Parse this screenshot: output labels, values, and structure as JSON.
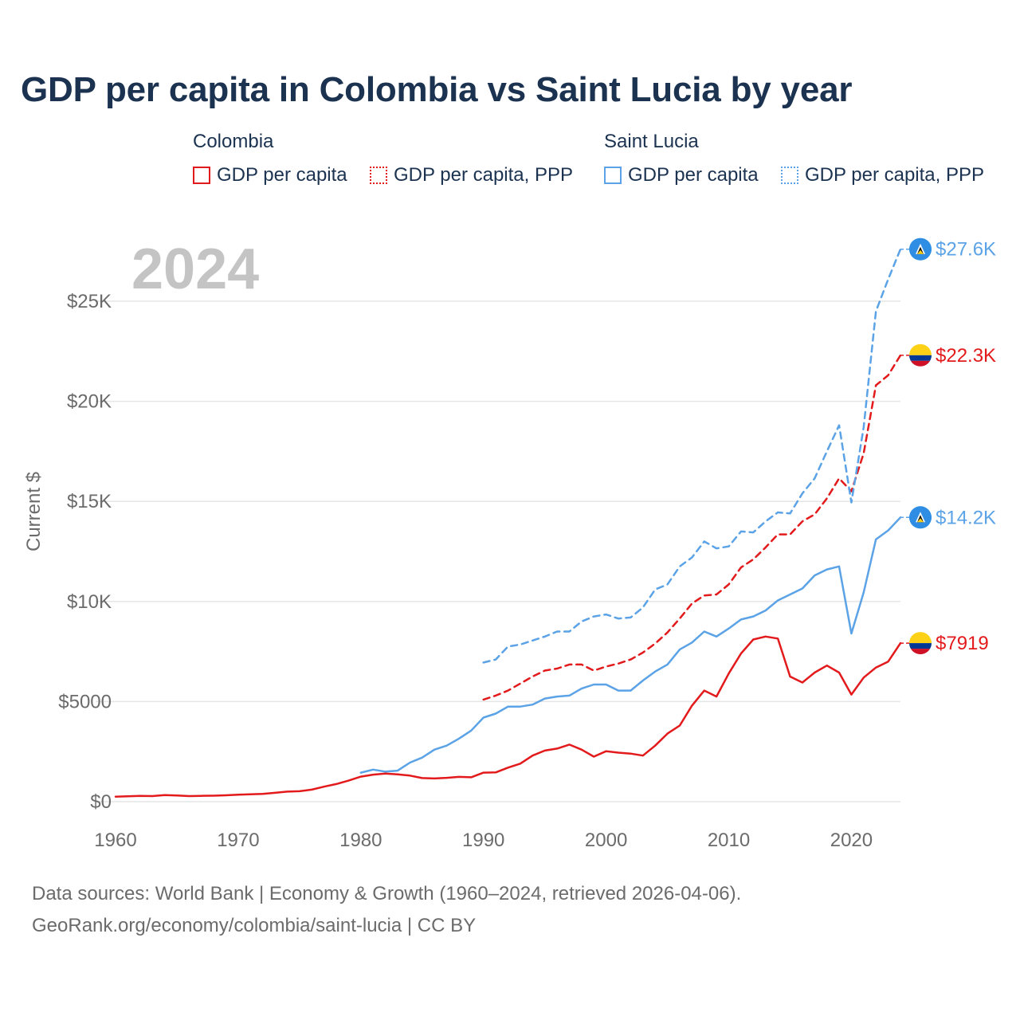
{
  "title": "GDP per capita in Colombia vs Saint Lucia by year",
  "legend": {
    "colombia": {
      "name": "Colombia",
      "item1": "GDP per capita",
      "item2": "GDP per capita, PPP"
    },
    "saint_lucia": {
      "name": "Saint Lucia",
      "item1": "GDP per capita",
      "item2": "GDP per capita, PPP"
    }
  },
  "year_label": "2024",
  "colors": {
    "colombia": "#e31a1c",
    "saint_lucia": "#5ba3e6",
    "title": "#1b3350",
    "axis_text": "#6b6b6b",
    "year": "#c4c4c4",
    "grid": "#e6e6e6"
  },
  "source": {
    "line1": "Data sources: World Bank | Economy & Growth (1960–2024, retrieved 2026-04-06).",
    "line2": "GeoRank.org/economy/colombia/saint-lucia | CC BY"
  },
  "chart_data": {
    "type": "line",
    "title": "GDP per capita in Colombia vs Saint Lucia by year",
    "xlabel": "",
    "ylabel": "Current $",
    "xlim": [
      1960,
      2024
    ],
    "ylim": [
      0,
      28000
    ],
    "x_ticks": [
      1960,
      1970,
      1980,
      1990,
      2000,
      2010,
      2020
    ],
    "x_tick_labels": [
      "1960",
      "1970",
      "1980",
      "1990",
      "2000",
      "2010",
      "2020"
    ],
    "y_ticks": [
      0,
      5000,
      10000,
      15000,
      20000,
      25000
    ],
    "y_tick_labels": [
      "$0",
      "$5000",
      "$10K",
      "$15K",
      "$20K",
      "$25K"
    ],
    "grid": true,
    "legend_position": "top",
    "series": [
      {
        "name": "Colombia GDP per capita",
        "country": "colombia",
        "dashed": false,
        "end_label": "$7919",
        "start_year": 1960,
        "values": [
          250,
          270,
          290,
          280,
          330,
          310,
          280,
          290,
          300,
          320,
          350,
          370,
          390,
          440,
          500,
          520,
          600,
          750,
          880,
          1050,
          1250,
          1350,
          1400,
          1360,
          1300,
          1180,
          1160,
          1190,
          1240,
          1220,
          1450,
          1460,
          1700,
          1900,
          2300,
          2550,
          2650,
          2850,
          2600,
          2250,
          2520,
          2450,
          2400,
          2300,
          2800,
          3400,
          3800,
          4800,
          5550,
          5250,
          6400,
          7400,
          8100,
          8250,
          8150,
          6250,
          5950,
          6450,
          6800,
          6450,
          5350,
          6200,
          6700,
          7000,
          7919
        ]
      },
      {
        "name": "Colombia GDP per capita, PPP",
        "country": "colombia",
        "dashed": true,
        "end_label": "$22.3K",
        "start_year": 1990,
        "values": [
          5100,
          5300,
          5550,
          5900,
          6250,
          6550,
          6650,
          6850,
          6850,
          6550,
          6750,
          6900,
          7100,
          7450,
          7900,
          8450,
          9150,
          9900,
          10300,
          10350,
          10850,
          11700,
          12100,
          12700,
          13350,
          13350,
          14000,
          14350,
          15150,
          16150,
          15500,
          17400,
          20800,
          21300,
          22300
        ]
      },
      {
        "name": "Saint Lucia GDP per capita",
        "country": "saint_lucia",
        "dashed": false,
        "end_label": "$14.2K",
        "start_year": 1980,
        "values": [
          1450,
          1600,
          1500,
          1550,
          1950,
          2200,
          2600,
          2800,
          3150,
          3550,
          4200,
          4400,
          4750,
          4750,
          4850,
          5150,
          5250,
          5300,
          5650,
          5850,
          5850,
          5550,
          5550,
          6050,
          6500,
          6850,
          7600,
          7950,
          8500,
          8250,
          8650,
          9100,
          9250,
          9550,
          10050,
          10350,
          10650,
          11300,
          11600,
          11750,
          8400,
          10450,
          13100,
          13550,
          14200
        ]
      },
      {
        "name": "Saint Lucia GDP per capita, PPP",
        "country": "saint_lucia",
        "dashed": true,
        "end_label": "$27.6K",
        "start_year": 1990,
        "values": [
          6950,
          7100,
          7750,
          7850,
          8050,
          8250,
          8500,
          8500,
          9000,
          9250,
          9350,
          9150,
          9200,
          9700,
          10600,
          10850,
          11750,
          12200,
          13000,
          12650,
          12750,
          13500,
          13450,
          14000,
          14450,
          14400,
          15400,
          16150,
          17500,
          18800,
          14950,
          18700,
          24500,
          26100,
          27600
        ]
      }
    ]
  }
}
